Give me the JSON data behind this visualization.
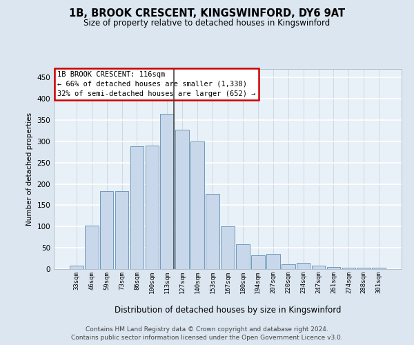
{
  "title_line1": "1B, BROOK CRESCENT, KINGSWINFORD, DY6 9AT",
  "title_line2": "Size of property relative to detached houses in Kingswinford",
  "xlabel": "Distribution of detached houses by size in Kingswinford",
  "ylabel": "Number of detached properties",
  "bar_labels": [
    "33sqm",
    "46sqm",
    "59sqm",
    "73sqm",
    "86sqm",
    "100sqm",
    "113sqm",
    "127sqm",
    "140sqm",
    "153sqm",
    "167sqm",
    "180sqm",
    "194sqm",
    "207sqm",
    "220sqm",
    "234sqm",
    "247sqm",
    "261sqm",
    "274sqm",
    "288sqm",
    "301sqm"
  ],
  "values": [
    8,
    102,
    183,
    183,
    288,
    290,
    365,
    328,
    300,
    176,
    100,
    58,
    32,
    35,
    11,
    15,
    8,
    5,
    4,
    4,
    3
  ],
  "bar_color": "#c8d8ea",
  "bar_edge_color": "#7099bb",
  "vline_x": 6.42,
  "vline_color": "#444444",
  "annotation_text": "1B BROOK CRESCENT: 116sqm\n← 66% of detached houses are smaller (1,338)\n32% of semi-detached houses are larger (652) →",
  "annotation_box_edgecolor": "#cc0000",
  "annotation_fill": "#ffffff",
  "ylim": [
    0,
    470
  ],
  "yticks": [
    0,
    50,
    100,
    150,
    200,
    250,
    300,
    350,
    400,
    450
  ],
  "footnote_line1": "Contains HM Land Registry data © Crown copyright and database right 2024.",
  "footnote_line2": "Contains public sector information licensed under the Open Government Licence v3.0.",
  "bg_color": "#dce6f0",
  "plot_bg_color": "#e8f0f8"
}
